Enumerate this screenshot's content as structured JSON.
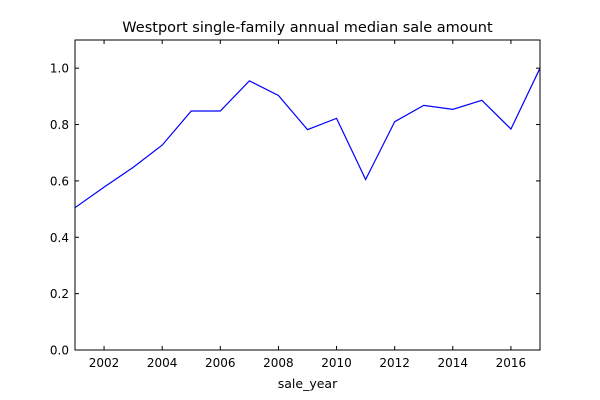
{
  "chart_data": {
    "type": "line",
    "title": "Westport single-family annual median sale amount",
    "xlabel": "sale_year",
    "ylabel": "",
    "xlim": [
      2001,
      2017
    ],
    "ylim": [
      0.0,
      1.1
    ],
    "x_ticks": [
      2002,
      2004,
      2006,
      2008,
      2010,
      2012,
      2014,
      2016
    ],
    "y_ticks": [
      0.0,
      0.2,
      0.4,
      0.6,
      0.8,
      1.0
    ],
    "x_tick_labels": [
      "2002",
      "2004",
      "2006",
      "2008",
      "2010",
      "2012",
      "2014",
      "2016"
    ],
    "y_tick_labels": [
      "0.0",
      "0.2",
      "0.4",
      "0.6",
      "0.8",
      "1.0"
    ],
    "grid": false,
    "legend": "none",
    "series": [
      {
        "color": "#0000ff",
        "x": [
          2001,
          2002,
          2003,
          2004,
          2005,
          2006,
          2007,
          2008,
          2009,
          2010,
          2011,
          2012,
          2013,
          2014,
          2015,
          2016,
          2017
        ],
        "values": [
          0.505,
          0.578,
          0.648,
          0.727,
          0.848,
          0.848,
          0.955,
          0.903,
          0.782,
          0.822,
          0.605,
          0.81,
          0.868,
          0.854,
          0.886,
          0.784,
          1.0
        ]
      }
    ]
  }
}
